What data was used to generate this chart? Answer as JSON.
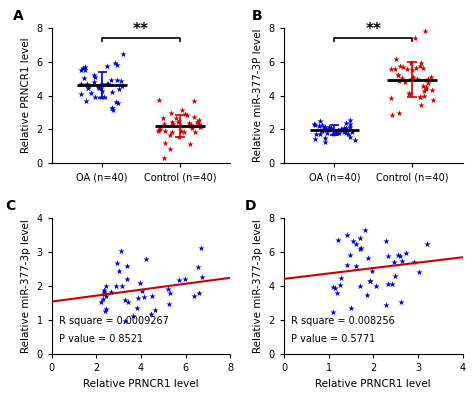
{
  "panel_A": {
    "label": "A",
    "ylabel": "Relative PRNCR1 level",
    "xtick_labels": [
      "OA (n=40)",
      "Control (n=40)"
    ],
    "ylim": [
      0,
      8
    ],
    "yticks": [
      0,
      2,
      4,
      6,
      8
    ],
    "group1_mean": 4.6,
    "group1_sd": 0.85,
    "group2_mean": 2.3,
    "group2_sd": 0.65,
    "group1_color": "#0000CC",
    "group2_color": "#CC0000",
    "significance": "**"
  },
  "panel_B": {
    "label": "B",
    "ylabel": "Relative miR-377-3P level",
    "xtick_labels": [
      "OA (n=40)",
      "Control (n=40)"
    ],
    "ylim": [
      0,
      8
    ],
    "yticks": [
      0,
      2,
      4,
      6,
      8
    ],
    "group1_mean": 1.9,
    "group1_sd": 0.35,
    "group2_mean": 5.1,
    "group2_sd": 1.1,
    "group1_color": "#0000CC",
    "group2_color": "#CC0000",
    "significance": "**"
  },
  "panel_C": {
    "label": "C",
    "xlabel": "Relative PRNCR1 level",
    "ylabel": "Relative miR-377-3p level",
    "xlim": [
      0,
      8
    ],
    "ylim": [
      0,
      4
    ],
    "xticks": [
      0,
      2,
      4,
      6,
      8
    ],
    "yticks": [
      0,
      1,
      2,
      3,
      4
    ],
    "r_square": "R square = 0.0009267",
    "p_value": "P value = 0.8521",
    "dot_color": "#0000CC",
    "line_color": "#CC0000",
    "x_range": [
      2.0,
      6.8
    ],
    "y_center": 1.9,
    "y_spread": 0.5
  },
  "panel_D": {
    "label": "D",
    "xlabel": "Relative PRNCR1 level",
    "ylabel": "Relative miR-377-3p level",
    "xlim": [
      0,
      4
    ],
    "ylim": [
      0,
      8
    ],
    "xticks": [
      0,
      1,
      2,
      3,
      4
    ],
    "yticks": [
      0,
      2,
      4,
      6,
      8
    ],
    "r_square": "R square = 0.008256",
    "p_value": "P value = 0.5771",
    "dot_color": "#0000CC",
    "line_color": "#CC0000",
    "x_range": [
      1.0,
      3.2
    ],
    "y_center": 5.2,
    "y_spread": 1.2
  },
  "bg_color": "#FFFFFF",
  "label_fontsize": 10,
  "tick_fontsize": 7,
  "axis_label_fontsize": 7.5
}
